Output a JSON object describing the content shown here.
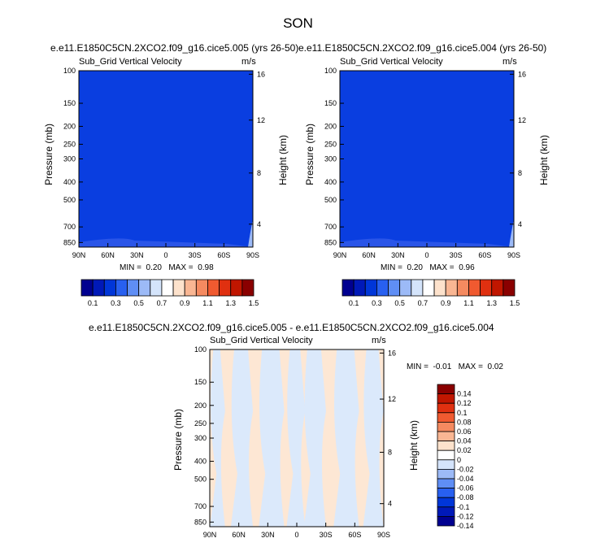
{
  "figure_title": "SON",
  "chart_data": [
    {
      "type": "heatmap",
      "title": "e.e11.E1850C5CN.2XCO2.f09_g16.cice5.005 (yrs 26-50)",
      "variable": "Sub_Grid Vertical Velocity",
      "units": "m/s",
      "xlabel": "",
      "ylabel": "Pressure (mb)",
      "ylabel_right": "Height (km)",
      "x_ticks": [
        "90N",
        "60N",
        "30N",
        "0",
        "30S",
        "60S",
        "90S"
      ],
      "y_ticks": [
        "100",
        "150",
        "200",
        "250",
        "300",
        "400",
        "500",
        "700",
        "850"
      ],
      "y2_ticks": [
        "16",
        "12",
        "8",
        "4"
      ],
      "min_label": "MIN =",
      "min": "0.20",
      "max_label": "MAX =",
      "max": "0.98",
      "colorbar": {
        "labels": [
          "0.1",
          "0.3",
          "0.5",
          "0.7",
          "0.9",
          "1.1",
          "1.3",
          "1.5"
        ],
        "colors": [
          "#000090",
          "#0019b8",
          "#0036d8",
          "#2860f0",
          "#5f8ef5",
          "#9cbaf7",
          "#d4e4fb",
          "#ffffff",
          "#fde2cc",
          "#f9b693",
          "#f58a60",
          "#f05a30",
          "#e03010",
          "#c01600",
          "#8a0000"
        ]
      },
      "dominant_color": "#0a3ee0",
      "edge_color": "#9cbaf7"
    },
    {
      "type": "heatmap",
      "title": "e.e11.E1850C5CN.2XCO2.f09_g16.cice5.004 (yrs 26-50)",
      "variable": "Sub_Grid Vertical Velocity",
      "units": "m/s",
      "xlabel": "",
      "ylabel": "Pressure (mb)",
      "ylabel_right": "Height (km)",
      "x_ticks": [
        "90N",
        "60N",
        "30N",
        "0",
        "30S",
        "60S",
        "90S"
      ],
      "y_ticks": [
        "100",
        "150",
        "200",
        "250",
        "300",
        "400",
        "500",
        "700",
        "850"
      ],
      "y2_ticks": [
        "16",
        "12",
        "8",
        "4"
      ],
      "min_label": "MIN =",
      "min": "0.20",
      "max_label": "MAX =",
      "max": "0.96",
      "colorbar": {
        "labels": [
          "0.1",
          "0.3",
          "0.5",
          "0.7",
          "0.9",
          "1.1",
          "1.3",
          "1.5"
        ],
        "colors": [
          "#000090",
          "#0019b8",
          "#0036d8",
          "#2860f0",
          "#5f8ef5",
          "#9cbaf7",
          "#d4e4fb",
          "#ffffff",
          "#fde2cc",
          "#f9b693",
          "#f58a60",
          "#f05a30",
          "#e03010",
          "#c01600",
          "#8a0000"
        ]
      },
      "dominant_color": "#0a3ee0",
      "edge_color": "#9cbaf7"
    },
    {
      "type": "heatmap",
      "title": "e.e11.E1850C5CN.2XCO2.f09_g16.cice5.005 - e.e11.E1850C5CN.2XCO2.f09_g16.cice5.004",
      "variable": "Sub_Grid Vertical Velocity",
      "units": "m/s",
      "xlabel": "",
      "ylabel": "Pressure (mb)",
      "ylabel_right": "Height (km)",
      "x_ticks": [
        "90N",
        "60N",
        "30N",
        "0",
        "30S",
        "60S",
        "90S"
      ],
      "y_ticks": [
        "100",
        "150",
        "200",
        "250",
        "300",
        "400",
        "500",
        "700",
        "850"
      ],
      "y2_ticks": [
        "16",
        "12",
        "8",
        "4"
      ],
      "min_label": "MIN =",
      "min": "-0.01",
      "max_label": "MAX =",
      "max": "0.02",
      "colorbar": {
        "labels": [
          "0.14",
          "0.12",
          "0.1",
          "0.08",
          "0.06",
          "0.04",
          "0.02",
          "0",
          "-0.02",
          "-0.04",
          "-0.06",
          "-0.08",
          "-0.1",
          "-0.12",
          "-0.14"
        ],
        "colors": [
          "#8a0000",
          "#c01600",
          "#e03010",
          "#f05a30",
          "#f58a60",
          "#f9b693",
          "#fde2cc",
          "#ffffff",
          "#d4e4fb",
          "#9cbaf7",
          "#5f8ef5",
          "#2860f0",
          "#0036d8",
          "#0019b8",
          "#000090"
        ]
      },
      "pattern_colors": [
        "#fde7d4",
        "#dbe9fb"
      ]
    }
  ]
}
